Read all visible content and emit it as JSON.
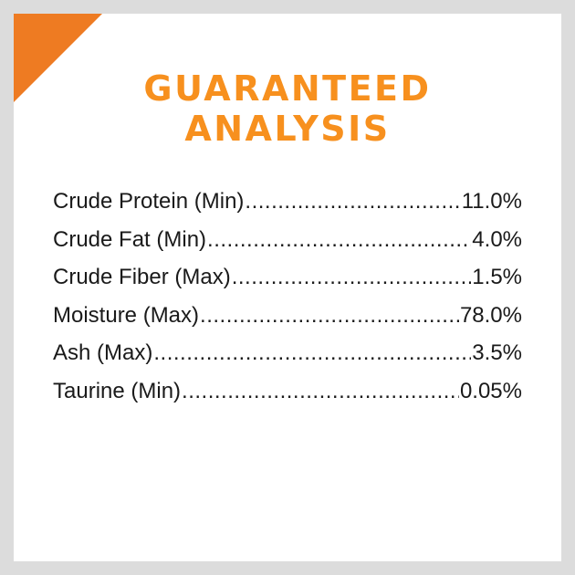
{
  "title_line1": "GUARANTEED",
  "title_line2": "ANALYSIS",
  "colors": {
    "accent_triangle": "#ee7b22",
    "title": "#f7901e"
  },
  "rows": [
    {
      "label": "Crude Protein (Min)",
      "value": "11.0%"
    },
    {
      "label": "Crude Fat (Min)",
      "value": "4.0%"
    },
    {
      "label": "Crude Fiber (Max)",
      "value": "1.5%"
    },
    {
      "label": "Moisture (Max)",
      "value": "78.0%"
    },
    {
      "label": "Ash (Max)",
      "value": "3.5%"
    },
    {
      "label": "Taurine (Min)",
      "value": "0.05%"
    }
  ]
}
